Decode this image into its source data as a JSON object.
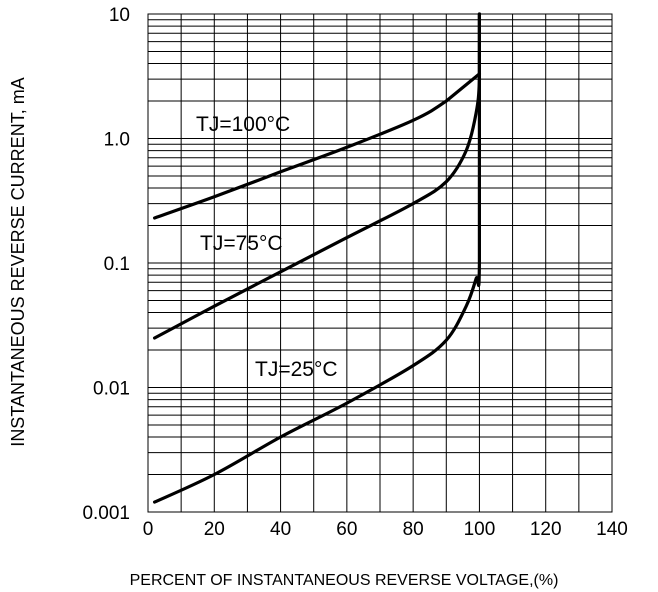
{
  "chart_data": {
    "type": "line",
    "xlabel": "PERCENT OF INSTANTANEOUS REVERSE VOLTAGE,(%)",
    "ylabel": "INSTANTANEOUS REVERSE CURRENT, mA",
    "xlim": [
      0,
      140
    ],
    "ylim": [
      0.001,
      10
    ],
    "yscale": "log",
    "x_ticks": [
      "0",
      "20",
      "40",
      "60",
      "80",
      "100",
      "120",
      "140"
    ],
    "y_ticks": [
      "0.001",
      "0.01",
      "0.1",
      "1.0",
      "10"
    ],
    "grid": true,
    "series": [
      {
        "name": "TJ=100°C",
        "x": [
          2,
          20,
          40,
          60,
          80,
          90,
          100
        ],
        "y": [
          0.23,
          0.34,
          0.54,
          0.85,
          1.4,
          2.0,
          3.3
        ]
      },
      {
        "name": "TJ=75°C",
        "x": [
          2,
          20,
          40,
          60,
          80,
          90,
          96,
          99,
          100,
          100
        ],
        "y": [
          0.025,
          0.045,
          0.085,
          0.16,
          0.3,
          0.45,
          0.8,
          1.6,
          3.0,
          10
        ]
      },
      {
        "name": "TJ=25°C",
        "x": [
          2,
          20,
          40,
          60,
          80,
          90,
          96,
          99,
          100,
          100
        ],
        "y": [
          0.0012,
          0.002,
          0.004,
          0.0075,
          0.015,
          0.024,
          0.045,
          0.075,
          0.1,
          10
        ]
      }
    ],
    "annotations": [
      "TJ=100°C",
      "TJ=75°C",
      "TJ=25°C"
    ]
  }
}
